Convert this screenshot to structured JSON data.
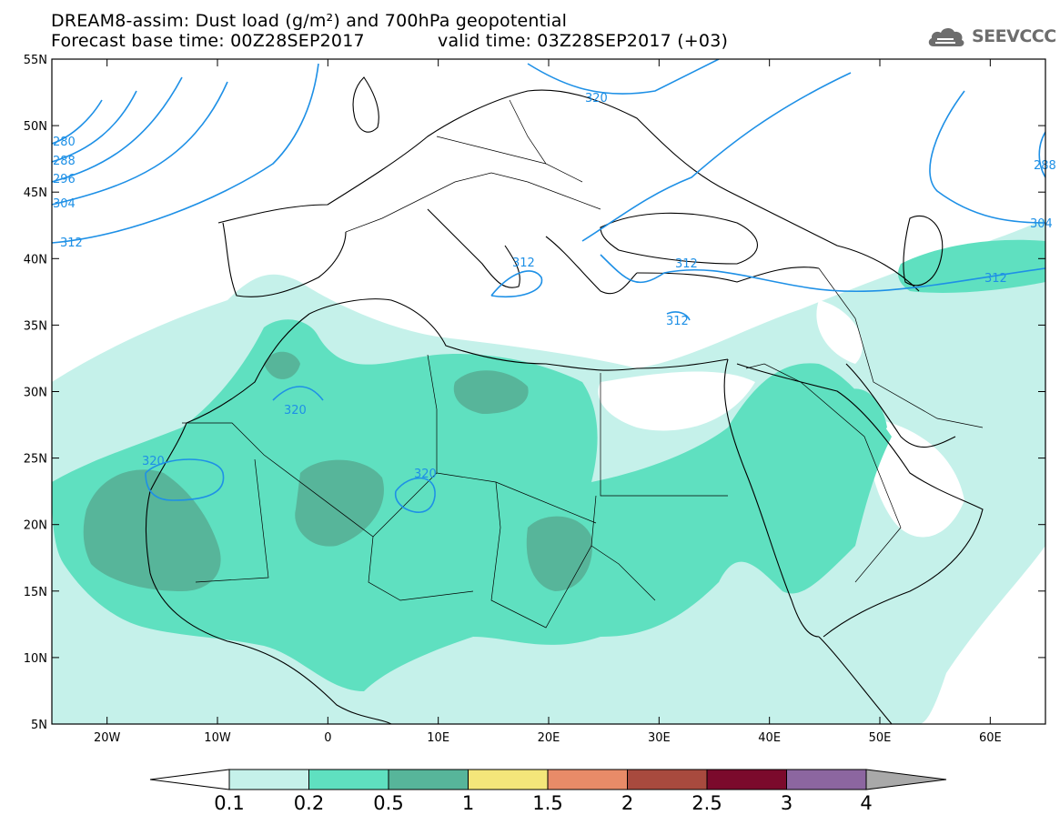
{
  "header": {
    "title_line1": "DREAM8-assim: Dust load (g/m²) and 700hPa geopotential",
    "title_line2_left": "Forecast base time: 00Z28SEP2017",
    "title_line2_right": "valid time: 03Z28SEP2017 (+03)"
  },
  "logo": {
    "text": "SEEVCCC",
    "icon": "cloud-icon",
    "color": "#6d6d6d"
  },
  "map": {
    "lat_labels": [
      "55N",
      "50N",
      "45N",
      "40N",
      "35N",
      "30N",
      "25N",
      "20N",
      "15N",
      "10N",
      "5N"
    ],
    "lon_labels": [
      "20W",
      "10W",
      "0",
      "10E",
      "20E",
      "30E",
      "40E",
      "50E",
      "60E"
    ],
    "contour_labels": [
      "280",
      "288",
      "296",
      "304",
      "312",
      "320",
      "312",
      "312",
      "312",
      "312",
      "320",
      "320",
      "320",
      "288",
      "304"
    ],
    "contour_color": "#1e90e6",
    "coastline_color": "#000000"
  },
  "colorbar": {
    "ticks": [
      "0.1",
      "0.2",
      "0.5",
      "1",
      "1.5",
      "2",
      "2.5",
      "3",
      "4"
    ],
    "colors": [
      "#ffffff",
      "#c5f1ea",
      "#5fe0c0",
      "#57b59a",
      "#f4e67a",
      "#e88b68",
      "#a84a3e",
      "#7b0a2c",
      "#8c66a0",
      "#a9a9a9"
    ]
  }
}
